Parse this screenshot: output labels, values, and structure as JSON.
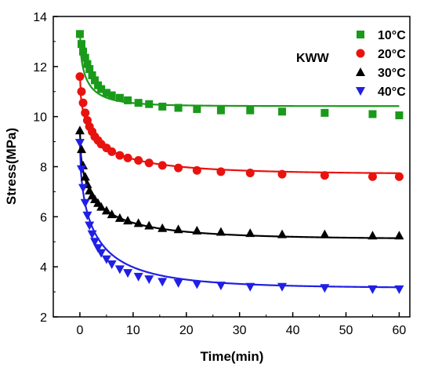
{
  "chart_data": {
    "type": "scatter",
    "xlabel": "Time(min)",
    "ylabel": "Stress(MPa)",
    "xlim": [
      -5,
      62
    ],
    "ylim": [
      2,
      14
    ],
    "xticks": [
      0,
      10,
      20,
      30,
      40,
      50,
      60
    ],
    "yticks": [
      2,
      4,
      6,
      8,
      10,
      12,
      14
    ],
    "annotation": "KWW",
    "legend_position": "top-right",
    "series": [
      {
        "name": "10°C",
        "marker": "square",
        "color": "#1a9a1a",
        "fit": {
          "y_inf": 10.42,
          "amp": 3.0,
          "tau": 1.2,
          "beta": 0.55
        },
        "x": [
          0,
          0.3,
          0.6,
          1.0,
          1.4,
          1.8,
          2.3,
          2.8,
          3.4,
          4.0,
          5.0,
          6.0,
          7.5,
          9.0,
          11,
          13,
          15.5,
          18.5,
          22,
          26.5,
          32,
          38,
          46,
          55,
          60
        ],
        "y": [
          13.3,
          12.9,
          12.6,
          12.35,
          12.1,
          11.9,
          11.65,
          11.45,
          11.25,
          11.1,
          10.95,
          10.85,
          10.75,
          10.65,
          10.55,
          10.5,
          10.4,
          10.35,
          10.3,
          10.25,
          10.25,
          10.2,
          10.15,
          10.1,
          10.05
        ]
      },
      {
        "name": "20°C",
        "marker": "circle",
        "color": "#e8130f",
        "fit": {
          "y_inf": 7.7,
          "amp": 4.0,
          "tau": 2.8,
          "beta": 0.5
        },
        "x": [
          0,
          0.3,
          0.6,
          1.0,
          1.4,
          1.8,
          2.3,
          2.8,
          3.4,
          4.0,
          5.0,
          6.0,
          7.5,
          9.0,
          11,
          13,
          15.5,
          18.5,
          22,
          26.5,
          32,
          38,
          46,
          55,
          60
        ],
        "y": [
          11.6,
          11.0,
          10.55,
          10.15,
          9.85,
          9.6,
          9.4,
          9.2,
          9.05,
          8.9,
          8.75,
          8.6,
          8.45,
          8.35,
          8.25,
          8.15,
          8.05,
          7.95,
          7.85,
          7.8,
          7.75,
          7.7,
          7.65,
          7.6,
          7.6
        ]
      },
      {
        "name": "30°C",
        "marker": "triangle-up",
        "color": "#000000",
        "fit": {
          "y_inf": 5.1,
          "amp": 4.35,
          "tau": 2.8,
          "beta": 0.5
        },
        "x": [
          0,
          0.3,
          0.6,
          1.0,
          1.4,
          1.8,
          2.3,
          2.8,
          3.4,
          4.0,
          5.0,
          6.0,
          7.5,
          9.0,
          11,
          13,
          15.5,
          18.5,
          22,
          26.5,
          32,
          38,
          46,
          55,
          60
        ],
        "y": [
          9.45,
          8.7,
          8.05,
          7.6,
          7.3,
          7.05,
          6.85,
          6.7,
          6.55,
          6.4,
          6.25,
          6.1,
          5.95,
          5.85,
          5.75,
          5.65,
          5.55,
          5.5,
          5.45,
          5.4,
          5.35,
          5.3,
          5.3,
          5.25,
          5.25
        ]
      },
      {
        "name": "40°C",
        "marker": "triangle-down",
        "color": "#1f1fe6",
        "fit": {
          "y_inf": 3.15,
          "amp": 5.8,
          "tau": 3.0,
          "beta": 0.55
        },
        "x": [
          0,
          0.3,
          0.6,
          1.0,
          1.4,
          1.8,
          2.3,
          2.8,
          3.4,
          4.0,
          5.0,
          6.0,
          7.5,
          9.0,
          11,
          13,
          15.5,
          18.5,
          22,
          26.5,
          32,
          38,
          46,
          55,
          60
        ],
        "y": [
          8.95,
          7.9,
          7.15,
          6.55,
          6.05,
          5.65,
          5.3,
          5.0,
          4.75,
          4.55,
          4.3,
          4.1,
          3.9,
          3.75,
          3.6,
          3.5,
          3.4,
          3.35,
          3.3,
          3.25,
          3.2,
          3.2,
          3.15,
          3.1,
          3.1
        ]
      }
    ]
  }
}
